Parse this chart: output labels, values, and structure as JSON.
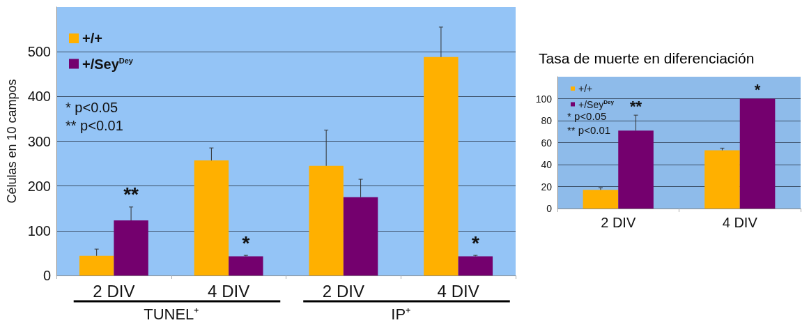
{
  "chart_data": [
    {
      "type": "bar",
      "ylabel": "Células en 10 campos",
      "categories": [
        "2 DIV",
        "4 DIV",
        "2 DIV",
        "4 DIV"
      ],
      "ylim": [
        0,
        600
      ],
      "yticks": [
        0,
        100,
        200,
        300,
        400,
        500
      ],
      "grid": "y",
      "legend": "top left",
      "series": [
        {
          "name": "+/+",
          "color": "#ffb000",
          "values": [
            44,
            257,
            245,
            488
          ],
          "errors": [
            [
              44,
              59
            ],
            [
              257,
              285
            ],
            [
              245,
              325
            ],
            [
              488,
              555
            ]
          ]
        },
        {
          "name": "+/Sey$^{Dey}$",
          "color": "#74006e",
          "values": [
            123,
            43,
            175,
            43
          ],
          "errors": [
            [
              123,
              153
            ],
            [
              43,
              45
            ],
            [
              175,
              215
            ],
            [
              43,
              45
            ]
          ],
          "value_labels": [
            "**",
            "*",
            null,
            "*"
          ]
        }
      ],
      "annotations": [
        "* p<0.05",
        "** p<0.01",
        "TUNEL⁺",
        "IP⁺"
      ]
    },
    {
      "type": "bar",
      "title": "Tasa de muerte en diferenciación",
      "categories": [
        "2 DIV",
        "4 DIV"
      ],
      "ylim": [
        0,
        120
      ],
      "yticks": [
        0,
        20,
        40,
        60,
        80,
        100
      ],
      "grid": "y",
      "legend": "top left",
      "series": [
        {
          "name": "+/+",
          "color": "#ffb000",
          "values": [
            17,
            53
          ],
          "errors": [
            [
              17,
              19
            ],
            [
              53,
              55
            ]
          ]
        },
        {
          "name": "+/Sey$^{Dey}$",
          "color": "#74006e",
          "values": [
            71,
            100
          ],
          "errors": [
            [
              71,
              85
            ],
            null
          ],
          "value_labels": [
            "**",
            "*"
          ]
        }
      ],
      "annotations": [
        "* p<0.05",
        "** p<0.01"
      ]
    }
  ]
}
